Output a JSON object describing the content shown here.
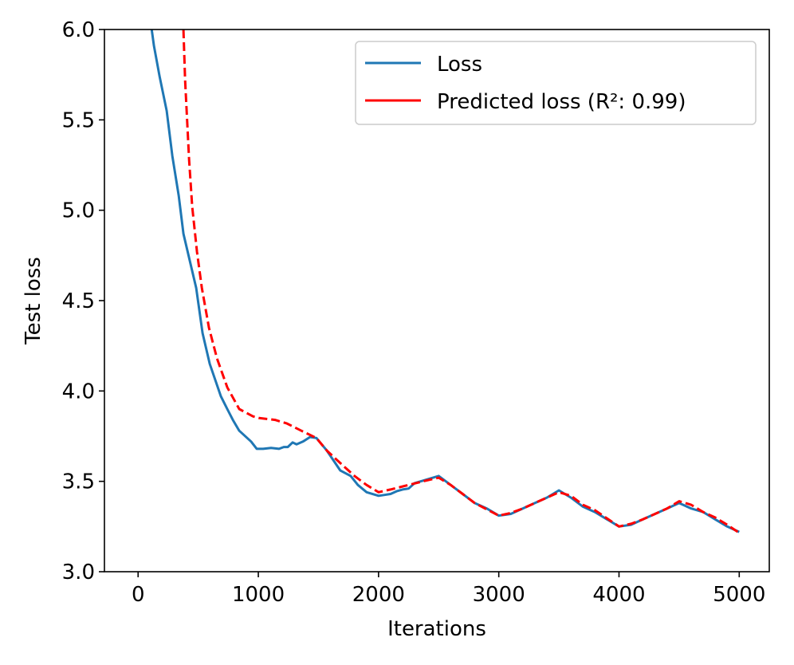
{
  "chart_data": {
    "type": "line",
    "title": "",
    "xlabel": "Iterations",
    "ylabel": "Test loss",
    "xlim": [
      -280,
      5250
    ],
    "ylim": [
      3.0,
      6.0
    ],
    "xticks": [
      0,
      1000,
      2000,
      3000,
      4000,
      5000
    ],
    "yticks": [
      3.0,
      3.5,
      4.0,
      4.5,
      5.0,
      5.5,
      6.0
    ],
    "ytick_labels": [
      "3.0",
      "3.5",
      "4.0",
      "4.5",
      "5.0",
      "5.5",
      "6.0"
    ],
    "grid": false,
    "legend_position": "top-right",
    "series": [
      {
        "name": "Loss",
        "color": "#1f77b4",
        "style": "solid",
        "x": [
          113,
          132,
          179,
          238,
          285,
          338,
          377,
          430,
          483,
          536,
          596,
          689,
          742,
          788,
          841,
          940,
          987,
          1040,
          1106,
          1172,
          1212,
          1245,
          1285,
          1318,
          1371,
          1430,
          1483,
          1570,
          1682,
          1768,
          1828,
          1901,
          2000,
          2050,
          2100,
          2150,
          2200,
          2250,
          2300,
          2400,
          2500,
          2600,
          2700,
          2800,
          2900,
          3000,
          3100,
          3200,
          3300,
          3400,
          3500,
          3600,
          3700,
          3800,
          3900,
          4000,
          4100,
          4200,
          4300,
          4400,
          4500,
          4600,
          4700,
          4800,
          4900,
          5000
        ],
        "y": [
          6.0,
          5.91,
          5.74,
          5.55,
          5.3,
          5.08,
          4.87,
          4.72,
          4.57,
          4.32,
          4.15,
          3.97,
          3.9,
          3.84,
          3.78,
          3.72,
          3.68,
          3.68,
          3.685,
          3.68,
          3.69,
          3.69,
          3.715,
          3.705,
          3.72,
          3.745,
          3.74,
          3.67,
          3.56,
          3.53,
          3.48,
          3.44,
          3.42,
          3.425,
          3.43,
          3.445,
          3.455,
          3.46,
          3.49,
          3.51,
          3.53,
          3.48,
          3.43,
          3.38,
          3.35,
          3.31,
          3.32,
          3.35,
          3.38,
          3.41,
          3.45,
          3.41,
          3.36,
          3.33,
          3.29,
          3.25,
          3.26,
          3.29,
          3.32,
          3.35,
          3.38,
          3.35,
          3.33,
          3.29,
          3.25,
          3.22
        ]
      },
      {
        "name": "Predicted loss (R²: 0.99)",
        "color": "#ff0000",
        "style": "dashed (solid where overlapping)",
        "x": [
          377,
          391,
          424,
          450,
          490,
          530,
          589,
          656,
          742,
          841,
          954,
          1007,
          1139,
          1238,
          1358,
          1483,
          1570,
          1700,
          1800,
          1900,
          2000,
          2100,
          2250,
          2400,
          2500,
          2600,
          2700,
          2800,
          2900,
          3000,
          3100,
          3200,
          3300,
          3400,
          3500,
          3600,
          3700,
          3800,
          3900,
          4000,
          4100,
          4200,
          4300,
          4400,
          4500,
          4600,
          4700,
          4800,
          4900,
          5000
        ],
        "y": [
          6.0,
          5.72,
          5.28,
          5.02,
          4.77,
          4.57,
          4.35,
          4.18,
          4.02,
          3.9,
          3.86,
          3.85,
          3.84,
          3.82,
          3.78,
          3.74,
          3.67,
          3.59,
          3.53,
          3.48,
          3.44,
          3.455,
          3.48,
          3.505,
          3.52,
          3.48,
          3.43,
          3.38,
          3.345,
          3.31,
          3.325,
          3.35,
          3.38,
          3.41,
          3.44,
          3.42,
          3.37,
          3.34,
          3.295,
          3.25,
          3.265,
          3.29,
          3.32,
          3.35,
          3.39,
          3.37,
          3.33,
          3.3,
          3.26,
          3.215
        ]
      }
    ]
  }
}
